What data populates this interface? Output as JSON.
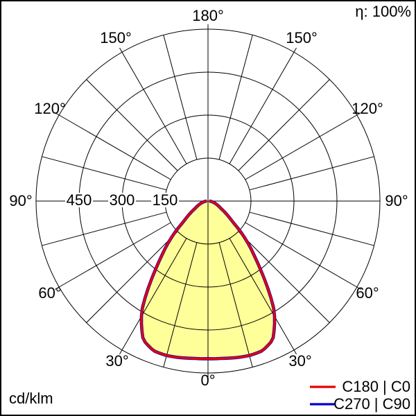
{
  "header": {
    "efficiency": "η: 100%"
  },
  "footer": {
    "unit": "cd/klm"
  },
  "legend": {
    "entries": [
      {
        "label": "C180 | C0",
        "color": "#e60000"
      },
      {
        "label": "C270 | C90",
        "color": "#0000cc"
      }
    ]
  },
  "polar": {
    "angle_labels": [
      {
        "text": "180°"
      },
      {
        "text": "150°"
      },
      {
        "text": "150°"
      },
      {
        "text": "120°"
      },
      {
        "text": "120°"
      },
      {
        "text": "90°"
      },
      {
        "text": "90°"
      },
      {
        "text": "60°"
      },
      {
        "text": "60°"
      },
      {
        "text": "30°"
      },
      {
        "text": "30°"
      },
      {
        "text": "0°"
      }
    ],
    "radial_labels": [
      "450",
      "300",
      "150"
    ]
  },
  "chart_data": {
    "type": "polar",
    "subtype": "luminous-intensity-distribution",
    "unit": "cd/klm",
    "efficiency_percent": 100,
    "angle_step_deg": 15,
    "angle_tick_labels_deg": [
      0,
      30,
      60,
      90,
      120,
      150,
      180
    ],
    "radial_ticks": [
      150,
      300,
      450
    ],
    "radial_max": 600,
    "grid": true,
    "fill_color": "#ffff99",
    "legend_position": "bottom-right",
    "series": [
      {
        "name": "C180 | C0",
        "color": "#e60000",
        "symmetric": true,
        "angles_deg": [
          0,
          5,
          10,
          15,
          20,
          25,
          28,
          31,
          34,
          37,
          40,
          45,
          50,
          55,
          60,
          65,
          70,
          75,
          80,
          85,
          90
        ],
        "values": [
          550,
          551,
          555,
          558,
          556,
          535,
          494,
          450,
          380,
          310,
          254,
          181,
          110,
          78,
          53,
          40,
          30,
          22,
          15,
          9,
          4
        ]
      },
      {
        "name": "C270 | C90",
        "color": "#0000cc",
        "symmetric": true,
        "angles_deg": [
          0,
          5,
          10,
          15,
          20,
          25,
          28,
          31,
          34,
          37,
          40,
          45,
          50,
          55,
          60,
          65,
          70,
          75,
          80,
          85,
          90
        ],
        "values": [
          550,
          551,
          555,
          558,
          556,
          535,
          494,
          450,
          380,
          310,
          254,
          181,
          110,
          78,
          53,
          40,
          30,
          22,
          15,
          9,
          4
        ]
      }
    ]
  }
}
